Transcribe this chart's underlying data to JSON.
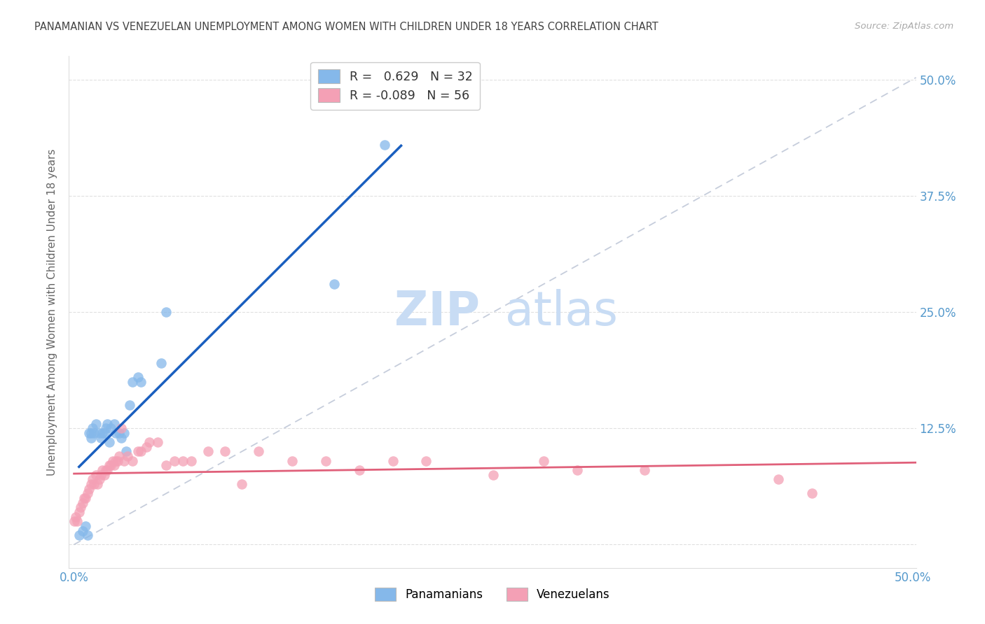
{
  "title": "PANAMANIAN VS VENEZUELAN UNEMPLOYMENT AMONG WOMEN WITH CHILDREN UNDER 18 YEARS CORRELATION CHART",
  "source": "Source: ZipAtlas.com",
  "ylabel": "Unemployment Among Women with Children Under 18 years",
  "xlim_min": -0.003,
  "xlim_max": 0.502,
  "ylim_min": -0.025,
  "ylim_max": 0.525,
  "blue_r": "0.629",
  "blue_n": "32",
  "pink_r": "-0.089",
  "pink_n": "56",
  "blue_color": "#85B8EA",
  "pink_color": "#F4A0B5",
  "blue_line_color": "#1A5FBF",
  "pink_line_color": "#E0607A",
  "diag_color": "#C0C8D8",
  "watermark_color": "#C8DCF4",
  "legend_label_blue": "Panamanians",
  "legend_label_pink": "Venezuelans",
  "r_color": "#5599CC",
  "n_color": "#3366AA",
  "pink_r_color": "#E05080",
  "pink_n_color": "#CC3366",
  "grid_color": "#DDDDDD",
  "axis_tick_color": "#5599CC",
  "title_color": "#444444",
  "ylabel_color": "#666666",
  "blue_points_x": [
    0.003,
    0.005,
    0.007,
    0.008,
    0.009,
    0.01,
    0.01,
    0.011,
    0.012,
    0.013,
    0.015,
    0.016,
    0.017,
    0.018,
    0.019,
    0.02,
    0.021,
    0.022,
    0.024,
    0.025,
    0.027,
    0.028,
    0.03,
    0.031,
    0.033,
    0.035,
    0.038,
    0.04,
    0.052,
    0.055,
    0.155,
    0.185
  ],
  "blue_points_y": [
    0.01,
    0.015,
    0.02,
    0.01,
    0.12,
    0.115,
    0.12,
    0.125,
    0.12,
    0.13,
    0.12,
    0.115,
    0.12,
    0.12,
    0.125,
    0.13,
    0.11,
    0.125,
    0.13,
    0.12,
    0.12,
    0.115,
    0.12,
    0.1,
    0.15,
    0.175,
    0.18,
    0.175,
    0.195,
    0.25,
    0.28,
    0.43
  ],
  "pink_points_x": [
    0.0,
    0.001,
    0.002,
    0.003,
    0.004,
    0.005,
    0.006,
    0.007,
    0.008,
    0.009,
    0.01,
    0.011,
    0.012,
    0.013,
    0.014,
    0.015,
    0.016,
    0.017,
    0.018,
    0.019,
    0.02,
    0.021,
    0.022,
    0.023,
    0.024,
    0.025,
    0.026,
    0.027,
    0.028,
    0.03,
    0.032,
    0.035,
    0.038,
    0.04,
    0.043,
    0.045,
    0.05,
    0.055,
    0.06,
    0.065,
    0.07,
    0.08,
    0.09,
    0.1,
    0.11,
    0.13,
    0.15,
    0.17,
    0.19,
    0.21,
    0.25,
    0.28,
    0.3,
    0.34,
    0.42,
    0.44
  ],
  "pink_points_y": [
    0.025,
    0.03,
    0.025,
    0.035,
    0.04,
    0.045,
    0.05,
    0.05,
    0.055,
    0.06,
    0.065,
    0.07,
    0.065,
    0.075,
    0.065,
    0.07,
    0.075,
    0.08,
    0.075,
    0.08,
    0.08,
    0.085,
    0.085,
    0.09,
    0.085,
    0.09,
    0.09,
    0.095,
    0.125,
    0.09,
    0.095,
    0.09,
    0.1,
    0.1,
    0.105,
    0.11,
    0.11,
    0.085,
    0.09,
    0.09,
    0.09,
    0.1,
    0.1,
    0.065,
    0.1,
    0.09,
    0.09,
    0.08,
    0.09,
    0.09,
    0.075,
    0.09,
    0.08,
    0.08,
    0.07,
    0.055
  ],
  "blue_line_x": [
    0.003,
    0.195
  ],
  "pink_line_x": [
    0.0,
    0.502
  ]
}
